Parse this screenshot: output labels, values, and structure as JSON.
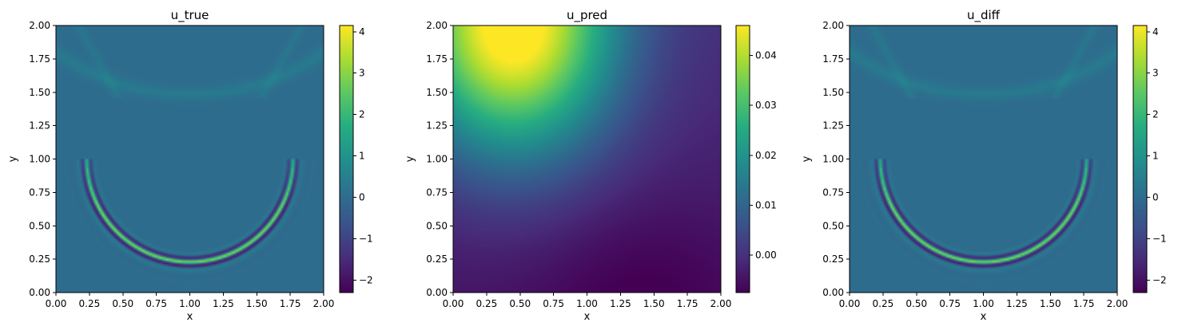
{
  "chart_data": [
    {
      "type": "heatmap",
      "title": "u_true",
      "xlabel": "x",
      "ylabel": "y",
      "xlim": [
        0,
        2
      ],
      "ylim": [
        0,
        2
      ],
      "xticks": [
        "0.00",
        "0.25",
        "0.50",
        "0.75",
        "1.00",
        "1.25",
        "1.50",
        "1.75",
        "2.00"
      ],
      "yticks": [
        "0.00",
        "0.25",
        "0.50",
        "0.75",
        "1.00",
        "1.25",
        "1.50",
        "1.75",
        "2.00"
      ],
      "colormap": "viridis",
      "colorbar": {
        "min": -2.3,
        "max": 4.15,
        "ticks": [
          "−2",
          "−1",
          "0",
          "1",
          "2",
          "3",
          "4"
        ],
        "tick_values": [
          -2,
          -1,
          0,
          1,
          2,
          3,
          4
        ]
      },
      "field": "wave"
    },
    {
      "type": "heatmap",
      "title": "u_pred",
      "xlabel": "x",
      "ylabel": "y",
      "xlim": [
        0,
        2
      ],
      "ylim": [
        0,
        2
      ],
      "xticks": [
        "0.00",
        "0.25",
        "0.50",
        "0.75",
        "1.00",
        "1.25",
        "1.50",
        "1.75",
        "2.00"
      ],
      "yticks": [
        "0.00",
        "0.25",
        "0.50",
        "0.75",
        "1.00",
        "1.25",
        "1.50",
        "1.75",
        "2.00"
      ],
      "colormap": "viridis",
      "colorbar": {
        "min": -0.0075,
        "max": 0.046,
        "ticks": [
          "0.00",
          "0.01",
          "0.02",
          "0.03",
          "0.04"
        ],
        "tick_values": [
          0.0,
          0.01,
          0.02,
          0.03,
          0.04
        ]
      },
      "field": "smooth"
    },
    {
      "type": "heatmap",
      "title": "u_diff",
      "xlabel": "x",
      "ylabel": "y",
      "xlim": [
        0,
        2
      ],
      "ylim": [
        0,
        2
      ],
      "xticks": [
        "0.00",
        "0.25",
        "0.50",
        "0.75",
        "1.00",
        "1.25",
        "1.50",
        "1.75",
        "2.00"
      ],
      "yticks": [
        "0.00",
        "0.25",
        "0.50",
        "0.75",
        "1.00",
        "1.25",
        "1.50",
        "1.75",
        "2.00"
      ],
      "colormap": "viridis",
      "colorbar": {
        "min": -2.3,
        "max": 4.15,
        "ticks": [
          "−2",
          "−1",
          "0",
          "1",
          "2",
          "3",
          "4"
        ],
        "tick_values": [
          -2,
          -1,
          0,
          1,
          2,
          3,
          4
        ]
      },
      "field": "wave"
    }
  ]
}
